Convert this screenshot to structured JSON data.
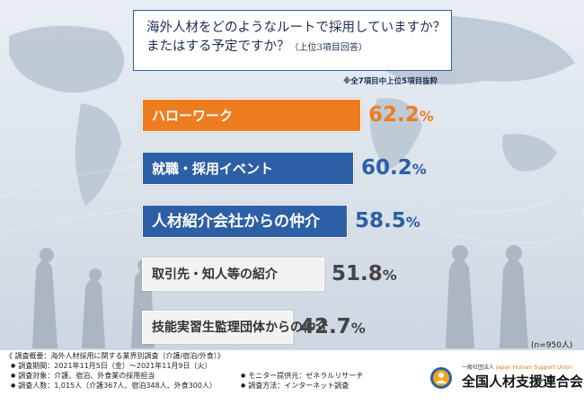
{
  "question": {
    "line1": "海外人材をどのようなルートで採用していますか？",
    "line2": "またはする予定ですか？",
    "line2_note": "（上位3項目回答）"
  },
  "note": "※全7項目中上位5項目抜粋",
  "chart_data": {
    "type": "bar",
    "orientation": "horizontal",
    "categories": [
      "ハローワーク",
      "就職・採用イベント",
      "人材紹介会社からの仲介",
      "取引先・知人等の紹介",
      "技能実習生監理団体からの仲介"
    ],
    "values": [
      62.2,
      60.2,
      58.5,
      51.8,
      42.7
    ],
    "unit": "%",
    "value_labels": [
      "62.2",
      "60.2",
      "58.5",
      "51.8",
      "42.7"
    ],
    "colors": [
      "#ee7d1f",
      "#2d5fa6",
      "#2d5fa6",
      "#f2f2f2",
      "#f2f2f2"
    ],
    "label_colors": [
      "#ffffff",
      "#ffffff",
      "#ffffff",
      "#333333",
      "#333333"
    ],
    "value_colors": [
      "#ee7d1f",
      "#2d5fa6",
      "#2d5fa6",
      "#444444",
      "#444444"
    ],
    "title": "",
    "xlabel": "",
    "ylabel": ""
  },
  "sample_size": "(n=950人)",
  "footer": {
    "heading": "《 調査概要：海外人材採用に関する業界別調査（介護/宿泊/外食）》",
    "items": [
      "調査期間：2021年11月5日（金）〜2021年11月9日（火）",
      "調査対象：介護、宿泊、外食業の採用担当",
      "調査人数：1,015人（介護367人、宿泊348人、外食300人）",
      "モニター提供元：ゼネラルリサーチ",
      "調査方法：インターネット調査"
    ]
  },
  "org": {
    "small_jp": "一般社団法人",
    "small_en": "Japan Human Support Union",
    "name": "全国人材支援連合会"
  }
}
